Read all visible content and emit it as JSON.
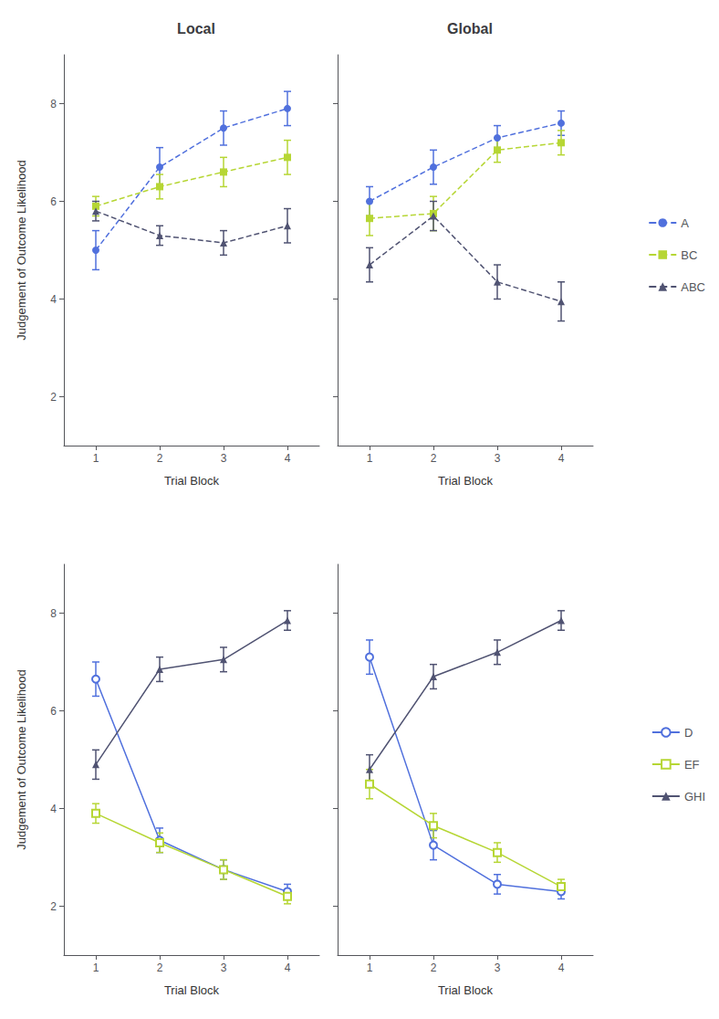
{
  "chart_data": [
    {
      "type": "line",
      "title": "Local",
      "xlabel": "Trial Block",
      "ylabel": "Judgement of Outcome Likelihood",
      "x": [
        1,
        2,
        3,
        4
      ],
      "xlim": [
        0.5,
        4.5
      ],
      "xticks": [
        1,
        2,
        3,
        4
      ],
      "ylim": [
        1,
        9
      ],
      "yticks": [
        2,
        4,
        6,
        8
      ],
      "grid": false,
      "line_style": "dashed",
      "series": [
        {
          "name": "A",
          "marker": "circle",
          "values": [
            5.0,
            6.7,
            7.5,
            7.9
          ],
          "yerr": [
            0.4,
            0.4,
            0.35,
            0.35
          ]
        },
        {
          "name": "BC",
          "marker": "square",
          "values": [
            5.9,
            6.3,
            6.6,
            6.9
          ],
          "yerr": [
            0.2,
            0.25,
            0.3,
            0.35
          ]
        },
        {
          "name": "ABC",
          "marker": "triangle",
          "values": [
            5.8,
            5.3,
            5.15,
            5.5
          ],
          "yerr": [
            0.2,
            0.2,
            0.25,
            0.35
          ]
        }
      ]
    },
    {
      "type": "line",
      "title": "Global",
      "xlabel": "Trial Block",
      "x": [
        1,
        2,
        3,
        4
      ],
      "xlim": [
        0.5,
        4.5
      ],
      "xticks": [
        1,
        2,
        3,
        4
      ],
      "ylim": [
        1,
        9
      ],
      "yticks": [
        2,
        4,
        6,
        8
      ],
      "grid": false,
      "line_style": "dashed",
      "tick_labels": "x",
      "legend": "right",
      "series": [
        {
          "name": "A",
          "marker": "circle",
          "values": [
            6.0,
            6.7,
            7.3,
            7.6
          ],
          "yerr": [
            0.3,
            0.35,
            0.25,
            0.25
          ]
        },
        {
          "name": "BC",
          "marker": "square",
          "values": [
            5.65,
            5.75,
            7.05,
            7.2
          ],
          "yerr": [
            0.35,
            0.35,
            0.25,
            0.25
          ]
        },
        {
          "name": "ABC",
          "marker": "triangle",
          "values": [
            4.7,
            5.7,
            4.35,
            3.95
          ],
          "yerr": [
            0.35,
            0.3,
            0.35,
            0.4
          ]
        }
      ]
    },
    {
      "type": "line",
      "xlabel": "Trial Block",
      "ylabel": "Judgement of Outcome Likelihood",
      "x": [
        1,
        2,
        3,
        4
      ],
      "xlim": [
        0.5,
        4.5
      ],
      "xticks": [
        1,
        2,
        3,
        4
      ],
      "ylim": [
        1,
        9
      ],
      "yticks": [
        2,
        4,
        6,
        8
      ],
      "grid": false,
      "line_style": "solid",
      "series": [
        {
          "name": "D",
          "marker": "open_circle",
          "values": [
            6.65,
            3.35,
            2.75,
            2.3
          ],
          "yerr": [
            0.35,
            0.25,
            0.2,
            0.15
          ]
        },
        {
          "name": "EF",
          "marker": "open_square",
          "values": [
            3.9,
            3.3,
            2.75,
            2.2
          ],
          "yerr": [
            0.2,
            0.2,
            0.2,
            0.15
          ]
        },
        {
          "name": "GHI",
          "marker": "triangle",
          "values": [
            4.9,
            6.85,
            7.05,
            7.85
          ],
          "yerr": [
            0.3,
            0.25,
            0.25,
            0.2
          ]
        }
      ]
    },
    {
      "type": "line",
      "xlabel": "Trial Block",
      "x": [
        1,
        2,
        3,
        4
      ],
      "xlim": [
        0.5,
        4.5
      ],
      "xticks": [
        1,
        2,
        3,
        4
      ],
      "ylim": [
        1,
        9
      ],
      "yticks": [
        2,
        4,
        6,
        8
      ],
      "grid": false,
      "line_style": "solid",
      "tick_labels": "x",
      "legend": "right",
      "series": [
        {
          "name": "D",
          "marker": "open_circle",
          "values": [
            7.1,
            3.25,
            2.45,
            2.3
          ],
          "yerr": [
            0.35,
            0.3,
            0.2,
            0.15
          ]
        },
        {
          "name": "EF",
          "marker": "open_square",
          "values": [
            4.5,
            3.65,
            3.1,
            2.4
          ],
          "yerr": [
            0.3,
            0.25,
            0.2,
            0.15
          ]
        },
        {
          "name": "GHI",
          "marker": "triangle",
          "values": [
            4.8,
            6.7,
            7.2,
            7.85
          ],
          "yerr": [
            0.3,
            0.25,
            0.25,
            0.2
          ]
        }
      ]
    }
  ]
}
